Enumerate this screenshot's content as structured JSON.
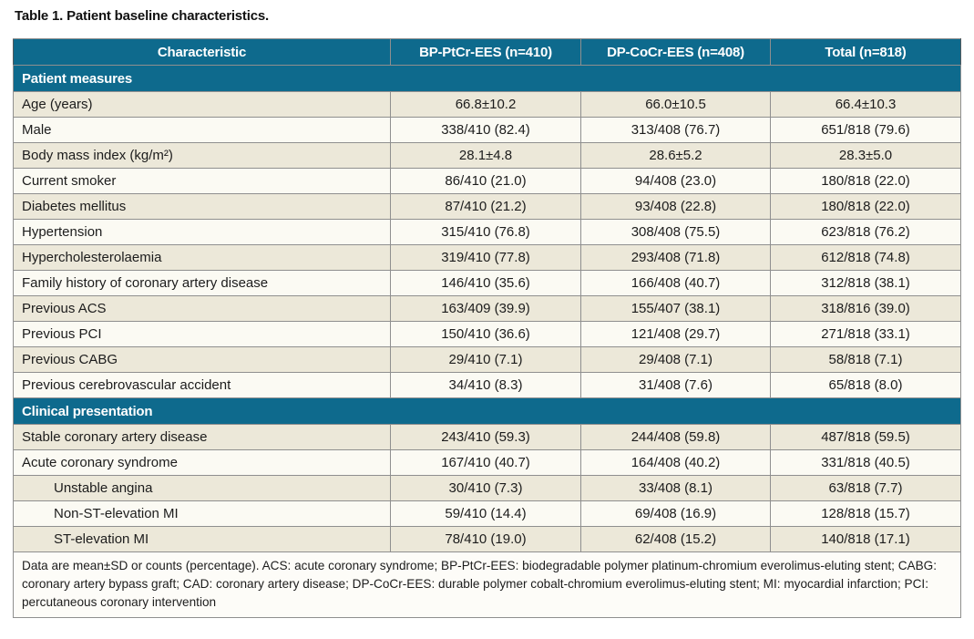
{
  "page": {
    "title": "Table 1. Patient baseline characteristics."
  },
  "colors": {
    "header_teal": "#0e6a8d",
    "dark_teal": "#0a4a63",
    "row_beige": "#ece8d9",
    "row_white": "#fbfaf3"
  },
  "table": {
    "columns": [
      "Characteristic",
      "BP-PtCr-EES (n=410)",
      "DP-CoCr-EES (n=408)",
      "Total (n=818)"
    ],
    "sections": [
      {
        "header": "Patient measures",
        "rows": [
          {
            "label": "Age (years)",
            "indent": false,
            "values": [
              "66.8±10.2",
              "66.0±10.5",
              "66.4±10.3"
            ]
          },
          {
            "label": "Male",
            "indent": false,
            "values": [
              "338/410 (82.4)",
              "313/408 (76.7)",
              "651/818 (79.6)"
            ]
          },
          {
            "label": "Body mass index (kg/m²)",
            "indent": false,
            "values": [
              "28.1±4.8",
              "28.6±5.2",
              "28.3±5.0"
            ]
          },
          {
            "label": "Current smoker",
            "indent": false,
            "values": [
              "86/410 (21.0)",
              "94/408 (23.0)",
              "180/818 (22.0)"
            ]
          },
          {
            "label": "Diabetes mellitus",
            "indent": false,
            "values": [
              "87/410 (21.2)",
              "93/408 (22.8)",
              "180/818 (22.0)"
            ]
          },
          {
            "label": "Hypertension",
            "indent": false,
            "values": [
              "315/410 (76.8)",
              "308/408 (75.5)",
              "623/818 (76.2)"
            ]
          },
          {
            "label": "Hypercholesterolaemia",
            "indent": false,
            "values": [
              "319/410 (77.8)",
              "293/408 (71.8)",
              "612/818 (74.8)"
            ]
          },
          {
            "label": "Family history of coronary artery disease",
            "indent": false,
            "values": [
              "146/410 (35.6)",
              "166/408 (40.7)",
              "312/818 (38.1)"
            ]
          },
          {
            "label": "Previous ACS",
            "indent": false,
            "values": [
              "163/409 (39.9)",
              "155/407 (38.1)",
              "318/816 (39.0)"
            ]
          },
          {
            "label": "Previous PCI",
            "indent": false,
            "values": [
              "150/410 (36.6)",
              "121/408 (29.7)",
              "271/818 (33.1)"
            ]
          },
          {
            "label": "Previous CABG",
            "indent": false,
            "values": [
              "29/410 (7.1)",
              "29/408 (7.1)",
              "58/818 (7.1)"
            ]
          },
          {
            "label": "Previous cerebrovascular accident",
            "indent": false,
            "values": [
              "34/410 (8.3)",
              "31/408 (7.6)",
              "65/818 (8.0)"
            ]
          }
        ]
      },
      {
        "header": "Clinical presentation",
        "rows": [
          {
            "label": "Stable coronary artery disease",
            "indent": false,
            "values": [
              "243/410 (59.3)",
              "244/408 (59.8)",
              "487/818 (59.5)"
            ]
          },
          {
            "label": "Acute coronary syndrome",
            "indent": false,
            "values": [
              "167/410 (40.7)",
              "164/408 (40.2)",
              "331/818 (40.5)"
            ]
          },
          {
            "label": "Unstable angina",
            "indent": true,
            "values": [
              "30/410 (7.3)",
              "33/408 (8.1)",
              "63/818 (7.7)"
            ]
          },
          {
            "label": "Non-ST-elevation MI",
            "indent": true,
            "values": [
              "59/410 (14.4)",
              "69/408 (16.9)",
              "128/818 (15.7)"
            ]
          },
          {
            "label": "ST-elevation MI",
            "indent": true,
            "values": [
              "78/410 (19.0)",
              "62/408 (15.2)",
              "140/818 (17.1)"
            ]
          }
        ]
      }
    ],
    "footnote": "Data are mean±SD or counts (percentage). ACS: acute coronary syndrome; BP-PtCr-EES: biodegradable polymer platinum-chromium everolimus-eluting stent; CABG: coronary artery bypass graft; CAD: coronary artery disease; DP-CoCr-EES: durable polymer cobalt-chromium everolimus-eluting stent; MI: myocardial infarction; PCI: percutaneous coronary intervention"
  }
}
